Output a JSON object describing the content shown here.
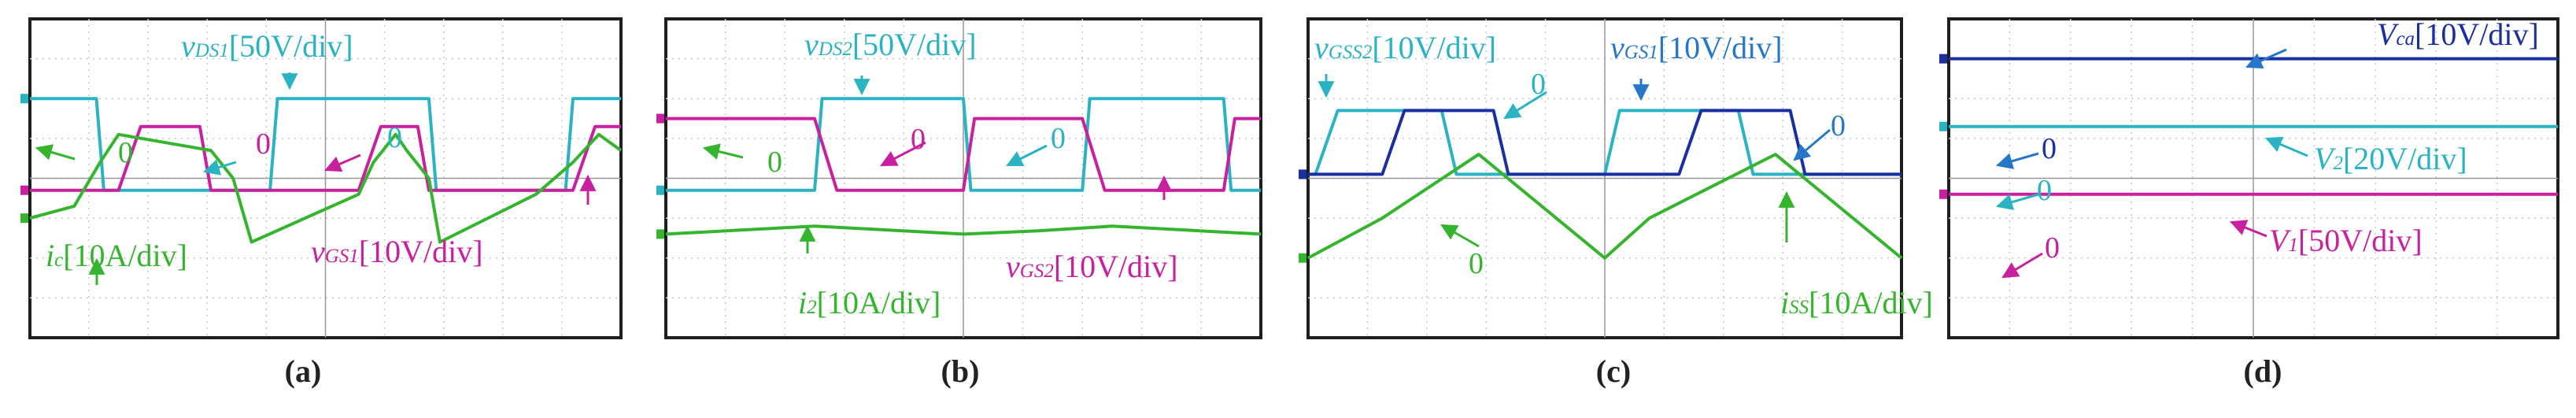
{
  "colors": {
    "cyan": "#2ab3c3",
    "magenta": "#c8209e",
    "green": "#35b52e",
    "navy": "#1a2fa0",
    "blue": "#2777c8",
    "grid": "#c8c8c8",
    "frame": "#1e1e1e"
  },
  "chart_data": [
    {
      "type": "line",
      "panel_label": "(a)",
      "series": [
        {
          "color": "#2ab3c3",
          "x": [
            0,
            0.9,
            1.0,
            2.3,
            3.25,
            3.35,
            4.55,
            5.4,
            5.5,
            6.5,
            7.25,
            7.35,
            8.0
          ],
          "y": [
            1.0,
            1.0,
            -0.15,
            -0.15,
            -0.15,
            1.0,
            1.0,
            1.0,
            -0.15,
            -0.15,
            -0.15,
            1.0,
            1.0
          ]
        },
        {
          "color": "#c8209e",
          "x": [
            0,
            1.2,
            1.5,
            2.3,
            2.45,
            4.45,
            4.75,
            5.25,
            5.4,
            7.35,
            7.65,
            8.0
          ],
          "y": [
            -0.15,
            -0.15,
            0.65,
            0.65,
            -0.15,
            -0.15,
            0.65,
            0.65,
            -0.15,
            -0.15,
            0.65,
            0.65
          ]
        },
        {
          "color": "#35b52e",
          "x": [
            0,
            0.6,
            0.95,
            1.2,
            2.45,
            2.75,
            3.0,
            4.45,
            4.65,
            4.95,
            5.1,
            5.4,
            5.55,
            6.85,
            7.35,
            7.7,
            8.0
          ],
          "y": [
            -0.5,
            -0.35,
            0.2,
            0.55,
            0.35,
            0.0,
            -0.8,
            -0.2,
            0.2,
            0.55,
            0.35,
            0.0,
            -0.8,
            -0.2,
            0.2,
            0.55,
            0.35
          ]
        }
      ],
      "annotations": [
        {
          "sym": "v",
          "sub": "DS1",
          "rest": "[50V/div]"
        },
        {
          "sym": "v",
          "sub": "GS1",
          "rest": "[10V/div]"
        },
        {
          "sym": "i",
          "sub": "c",
          "rest": "[10A/div]"
        },
        {
          "text": "0"
        },
        {
          "text": "0"
        },
        {
          "text": "0"
        }
      ]
    },
    {
      "type": "line",
      "panel_label": "(b)",
      "series": [
        {
          "color": "#2ab3c3",
          "x": [
            0,
            2.0,
            2.1,
            4.0,
            4.1,
            5.6,
            5.7,
            7.5,
            7.6,
            8.0
          ],
          "y": [
            -0.15,
            -0.15,
            1.0,
            1.0,
            -0.15,
            -0.15,
            1.0,
            1.0,
            -0.15,
            -0.15
          ]
        },
        {
          "color": "#c8209e",
          "x": [
            0,
            2.0,
            2.3,
            4.0,
            4.15,
            5.6,
            5.9,
            7.5,
            7.65,
            8.0
          ],
          "y": [
            0.75,
            0.75,
            -0.15,
            -0.15,
            0.75,
            0.75,
            -0.15,
            -0.15,
            0.75,
            0.75
          ]
        },
        {
          "color": "#35b52e",
          "x": [
            0,
            1.0,
            2.0,
            3.0,
            4.0,
            5.0,
            6.0,
            7.0,
            8.0
          ],
          "y": [
            -0.7,
            -0.65,
            -0.6,
            -0.65,
            -0.7,
            -0.66,
            -0.6,
            -0.65,
            -0.7
          ]
        }
      ],
      "annotations": [
        {
          "sym": "v",
          "sub": "DS2",
          "rest": "[50V/div]"
        },
        {
          "sym": "v",
          "sub": "GS2",
          "rest": "[10V/div]"
        },
        {
          "sym": "i",
          "sub": "2",
          "rest": "[10A/div]"
        },
        {
          "text": "0"
        },
        {
          "text": "0"
        },
        {
          "text": "0"
        }
      ]
    },
    {
      "type": "line",
      "panel_label": "(c)",
      "series": [
        {
          "color": "#2ab3c3",
          "x": [
            0,
            0.1,
            0.4,
            1.8,
            2.0,
            4.0,
            4.2,
            4.5,
            5.8,
            6.0,
            8.0
          ],
          "y": [
            0.05,
            0.05,
            0.85,
            0.85,
            0.05,
            0.05,
            0.85,
            0.85,
            0.85,
            0.05,
            0.05
          ]
        },
        {
          "color": "#1a2fa0",
          "x": [
            0,
            1.0,
            1.3,
            2.5,
            2.7,
            5.0,
            5.3,
            6.5,
            6.7,
            8.0
          ],
          "y": [
            0.05,
            0.05,
            0.85,
            0.85,
            0.05,
            0.05,
            0.85,
            0.85,
            0.05,
            0.05
          ]
        },
        {
          "color": "#35b52e",
          "x": [
            0,
            1.0,
            2.3,
            4.0,
            4.6,
            6.3,
            8.0
          ],
          "y": [
            -1.0,
            -0.5,
            0.3,
            -1.0,
            -0.5,
            0.3,
            -1.0
          ]
        }
      ],
      "annotations": [
        {
          "sym": "v",
          "sub": "GSS2",
          "rest": "[10V/div]"
        },
        {
          "sym": "v",
          "sub": "GS1",
          "rest": "[10V/div]"
        },
        {
          "sym": "i",
          "sub": "SS",
          "rest": "[10A/div]"
        },
        {
          "text": "0"
        },
        {
          "text": "0"
        },
        {
          "text": "0"
        }
      ]
    },
    {
      "type": "line",
      "panel_label": "(d)",
      "series": [
        {
          "color": "#1a2fa0",
          "x": [
            0,
            8
          ],
          "y": [
            1.5,
            1.5
          ]
        },
        {
          "color": "#2ab3c3",
          "x": [
            0,
            8
          ],
          "y": [
            0.65,
            0.65
          ]
        },
        {
          "color": "#c8209e",
          "x": [
            0,
            8
          ],
          "y": [
            -0.2,
            -0.2
          ]
        }
      ],
      "annotations": [
        {
          "sym": "V",
          "sub": "ca",
          "rest": "[10V/div]"
        },
        {
          "sym": "V",
          "sub": "2",
          "rest": "[20V/div]"
        },
        {
          "sym": "V",
          "sub": "1",
          "rest": "[50V/div]"
        },
        {
          "text": "0"
        },
        {
          "text": "0"
        },
        {
          "text": "0"
        }
      ]
    }
  ]
}
